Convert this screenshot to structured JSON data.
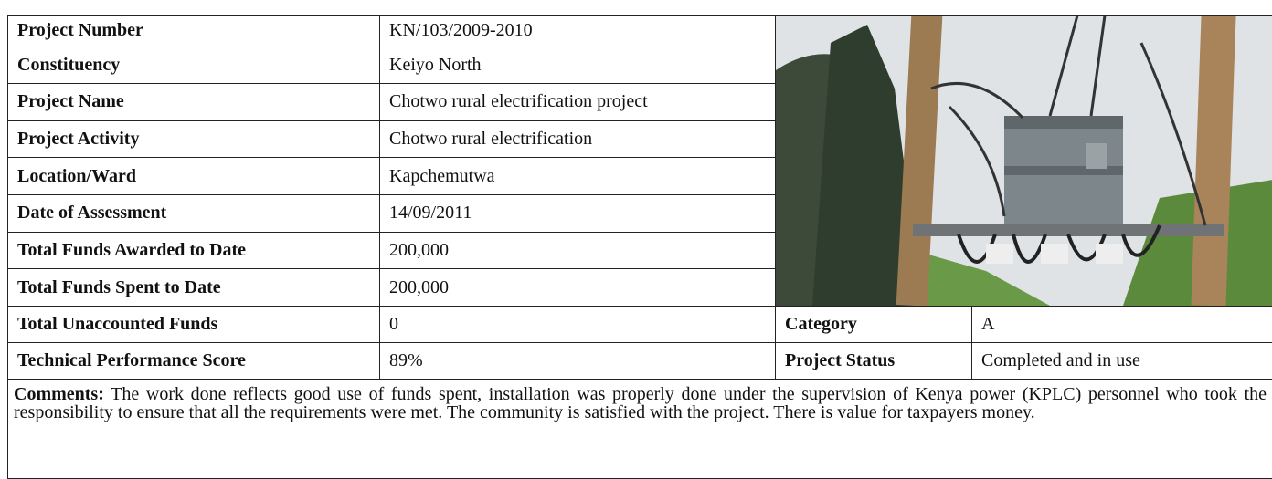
{
  "rows": [
    [
      "Project Number",
      "KN/103/2009-2010"
    ],
    [
      "Constituency",
      "Keiyo North"
    ],
    [
      "Project Name",
      "Chotwo rural electrification project"
    ],
    [
      "Project Activity",
      "Chotwo rural electrification"
    ],
    [
      "Location/Ward",
      "Kapchemutwa"
    ],
    [
      "Date of Assessment",
      "14/09/2011"
    ],
    [
      "Total Funds Awarded to Date",
      "200,000"
    ],
    [
      "Total Funds Spent to Date",
      "200,000"
    ],
    [
      "Total Unaccounted Funds",
      "0"
    ],
    [
      "Technical Performance Score",
      "89%"
    ]
  ],
  "side": [
    [
      "Category",
      "A"
    ],
    [
      "Project Status",
      "Completed and in use"
    ]
  ],
  "comments": {
    "label": "Comments:",
    "text": "The work done reflects good use of funds spent, installation was properly done under the supervision of Kenya power (KPLC) personnel who took the responsibility to ensure that all the requirements were met. The community is satisfied with the project. There is value for taxpayers money."
  }
}
